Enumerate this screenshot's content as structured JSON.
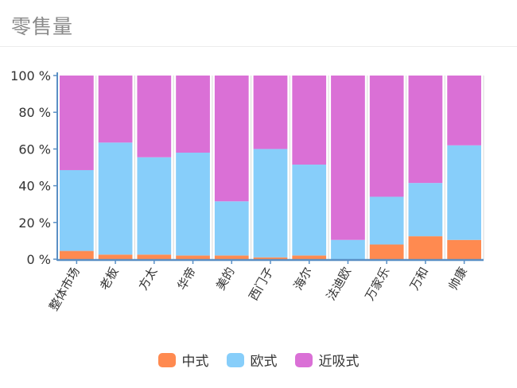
{
  "header": {
    "title": "零售量"
  },
  "colors": {
    "zhongshi": "#ff8a50",
    "oushi": "#87cefa",
    "jinxishi": "#da70d6"
  },
  "chart_data": {
    "type": "bar",
    "stacked": true,
    "percent": true,
    "title": "零售量",
    "categories": [
      "整体市场",
      "老板",
      "方太",
      "华帝",
      "美的",
      "西门子",
      "海尔",
      "法迪欧",
      "万家乐",
      "万和",
      "帅康"
    ],
    "series": [
      {
        "name": "中式",
        "color": "#ff8a50",
        "values": [
          4.5,
          2.5,
          2.5,
          2,
          2,
          1,
          2,
          0,
          8,
          12.5,
          10.5
        ]
      },
      {
        "name": "欧式",
        "color": "#87cefa",
        "values": [
          44,
          61,
          53,
          56,
          29.5,
          59,
          49.5,
          10.5,
          26,
          29,
          51.5
        ]
      },
      {
        "name": "近吸式",
        "color": "#da70d6",
        "values": [
          51.5,
          36.5,
          44.5,
          42,
          68.5,
          40,
          48.5,
          89.5,
          66,
          58.5,
          38
        ]
      }
    ],
    "yticks": [
      "0 %",
      "20 %",
      "40 %",
      "60 %",
      "80 %",
      "100 %"
    ],
    "ylim": [
      0,
      100
    ],
    "grid": "vertical",
    "legend_position": "bottom"
  }
}
